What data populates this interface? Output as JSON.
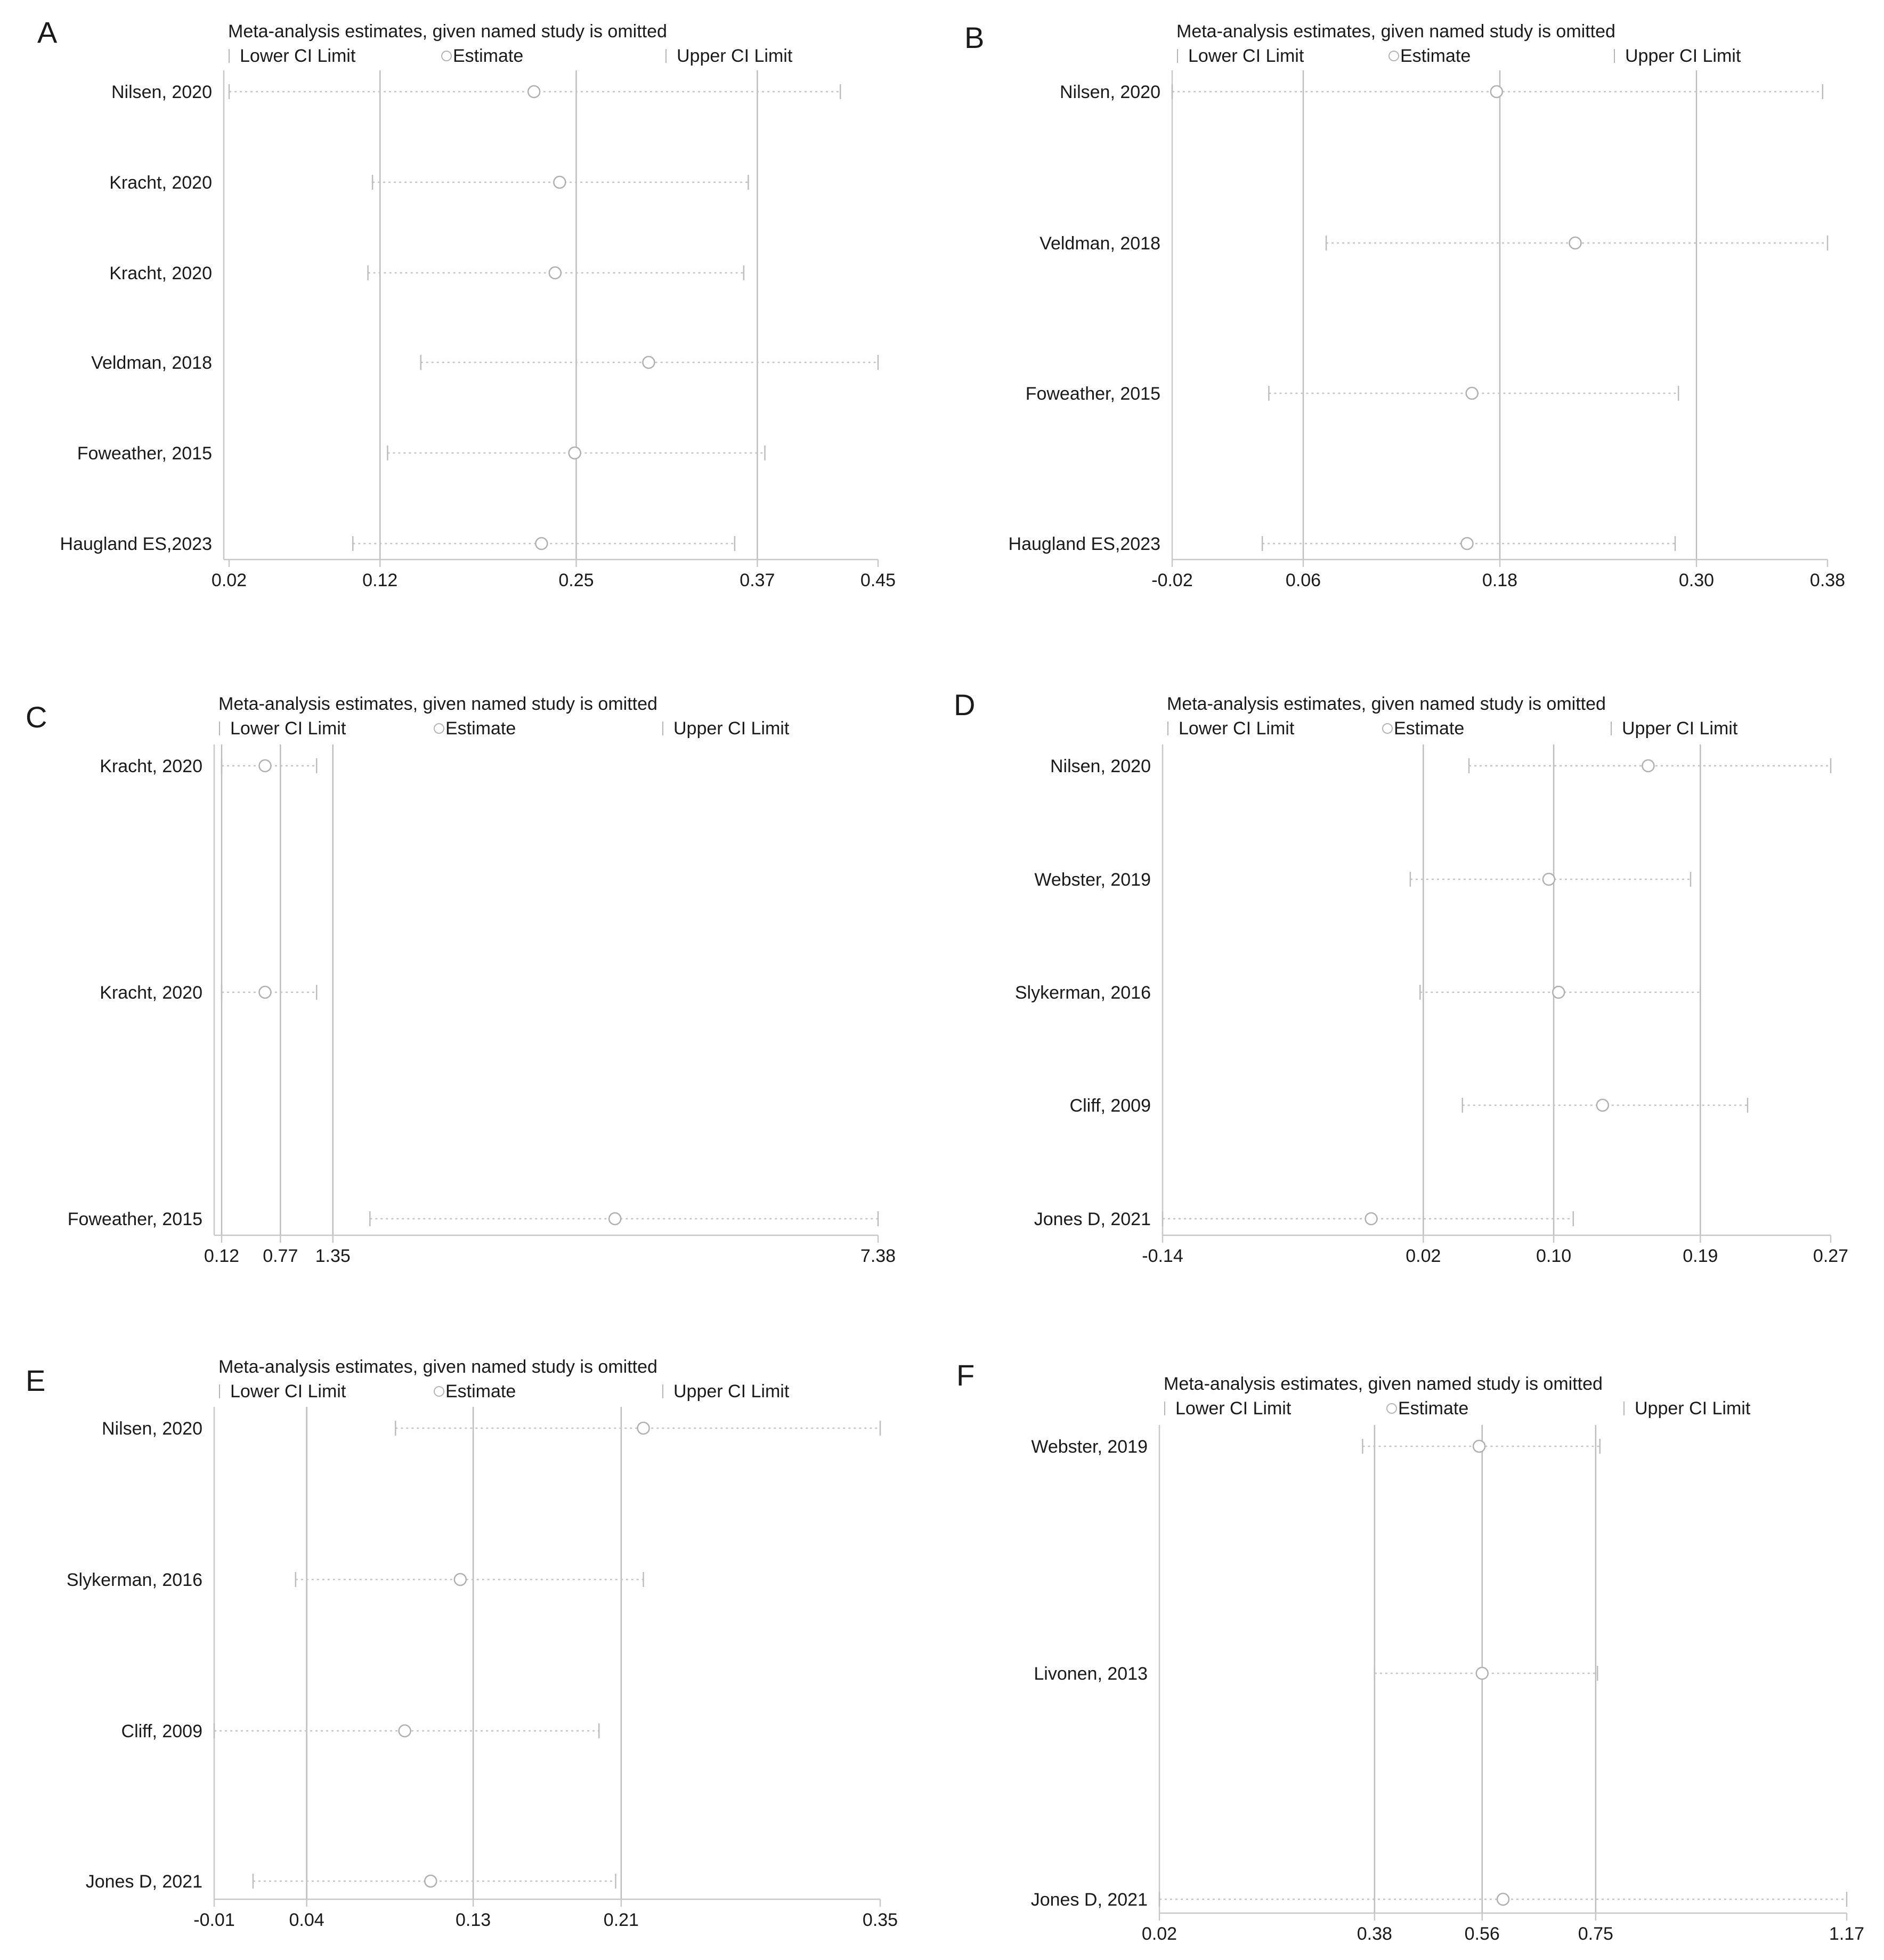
{
  "chart_data": [
    {
      "panel": "A",
      "type": "forest",
      "title": "Meta-analysis estimates, given named study is omitted",
      "legend": {
        "lower": "Lower CI Limit",
        "estimate": "Estimate",
        "upper": "Upper CI Limit"
      },
      "x_ticks": [
        0.02,
        0.12,
        0.25,
        0.37,
        0.45
      ],
      "x_tick_labels": [
        "0.02",
        "0.12",
        "0.25",
        "0.37",
        "0.45"
      ],
      "xlim": [
        0.02,
        0.45
      ],
      "ref_lines": [
        0.12,
        0.25,
        0.37
      ],
      "studies": [
        {
          "name": "Nilsen, 2020",
          "lower": 0.02,
          "estimate": 0.222,
          "upper": 0.425
        },
        {
          "name": "Kracht, 2020",
          "lower": 0.115,
          "estimate": 0.239,
          "upper": 0.364
        },
        {
          "name": "Kracht, 2020",
          "lower": 0.112,
          "estimate": 0.236,
          "upper": 0.361
        },
        {
          "name": "Veldman, 2018",
          "lower": 0.147,
          "estimate": 0.298,
          "upper": 0.45
        },
        {
          "name": "Foweather, 2015",
          "lower": 0.125,
          "estimate": 0.249,
          "upper": 0.375
        },
        {
          "name": "Haugland ES,2023",
          "lower": 0.102,
          "estimate": 0.227,
          "upper": 0.355
        }
      ]
    },
    {
      "panel": "B",
      "type": "forest",
      "title": "Meta-analysis estimates, given named study is omitted",
      "legend": {
        "lower": "Lower CI Limit",
        "estimate": "Estimate",
        "upper": "Upper CI Limit"
      },
      "x_ticks": [
        -0.02,
        0.06,
        0.18,
        0.3,
        0.38
      ],
      "x_tick_labels": [
        "-0.02",
        "0.06",
        "0.18",
        "0.30",
        "0.38"
      ],
      "xlim": [
        -0.02,
        0.38
      ],
      "ref_lines": [
        0.06,
        0.18,
        0.3
      ],
      "studies": [
        {
          "name": "Nilsen, 2020",
          "lower": -0.02,
          "estimate": 0.178,
          "upper": 0.377
        },
        {
          "name": "Veldman, 2018",
          "lower": 0.074,
          "estimate": 0.226,
          "upper": 0.38
        },
        {
          "name": "Foweather, 2015",
          "lower": 0.039,
          "estimate": 0.163,
          "upper": 0.289
        },
        {
          "name": "Haugland ES,2023",
          "lower": 0.035,
          "estimate": 0.16,
          "upper": 0.287
        }
      ]
    },
    {
      "panel": "C",
      "type": "forest",
      "title": "Meta-analysis estimates, given named study is omitted",
      "legend": {
        "lower": "Lower CI Limit",
        "estimate": "Estimate",
        "upper": "Upper CI Limit"
      },
      "x_ticks": [
        0.12,
        0.77,
        1.35,
        7.38
      ],
      "x_tick_labels": [
        "0.12",
        "0.77",
        "1.35",
        "7.38"
      ],
      "xlim": [
        0.12,
        7.38
      ],
      "ref_lines": [
        0.12,
        0.77,
        1.35
      ],
      "studies": [
        {
          "name": "Kracht, 2020",
          "lower": 0.12,
          "estimate": 0.6,
          "upper": 1.17
        },
        {
          "name": "Kracht, 2020",
          "lower": 0.12,
          "estimate": 0.6,
          "upper": 1.17
        },
        {
          "name": "Foweather, 2015",
          "lower": 1.76,
          "estimate": 4.47,
          "upper": 7.38
        }
      ]
    },
    {
      "panel": "D",
      "type": "forest",
      "title": "Meta-analysis estimates, given named study is omitted",
      "legend": {
        "lower": "Lower CI Limit",
        "estimate": "Estimate",
        "upper": "Upper CI Limit"
      },
      "x_ticks": [
        -0.14,
        0.02,
        0.1,
        0.19,
        0.27
      ],
      "x_tick_labels": [
        "-0.14",
        "0.02",
        "0.10",
        "0.19",
        "0.27"
      ],
      "xlim": [
        -0.14,
        0.27
      ],
      "ref_lines": [
        0.02,
        0.1,
        0.19
      ],
      "studies": [
        {
          "name": "Nilsen, 2020",
          "lower": 0.048,
          "estimate": 0.158,
          "upper": 0.27
        },
        {
          "name": "Webster, 2019",
          "lower": 0.012,
          "estimate": 0.097,
          "upper": 0.184
        },
        {
          "name": "Slykerman, 2016",
          "lower": 0.018,
          "estimate": 0.103,
          "upper": 0.19
        },
        {
          "name": "Cliff, 2009",
          "lower": 0.044,
          "estimate": 0.13,
          "upper": 0.219
        },
        {
          "name": "Jones D, 2021",
          "lower": -0.14,
          "estimate": -0.012,
          "upper": 0.112
        }
      ]
    },
    {
      "panel": "E",
      "type": "forest",
      "title": "Meta-analysis estimates, given named study is omitted",
      "legend": {
        "lower": "Lower CI Limit",
        "estimate": "Estimate",
        "upper": "Upper CI Limit"
      },
      "x_ticks": [
        -0.01,
        0.04,
        0.13,
        0.21,
        0.35
      ],
      "x_tick_labels": [
        "-0.01",
        "0.04",
        "0.13",
        "0.21",
        "0.35"
      ],
      "xlim": [
        -0.01,
        0.35
      ],
      "ref_lines": [
        0.04,
        0.13,
        0.21
      ],
      "studies": [
        {
          "name": "Nilsen, 2020",
          "lower": 0.088,
          "estimate": 0.222,
          "upper": 0.35
        },
        {
          "name": "Slykerman, 2016",
          "lower": 0.034,
          "estimate": 0.123,
          "upper": 0.222
        },
        {
          "name": "Cliff, 2009",
          "lower": -0.01,
          "estimate": 0.093,
          "upper": 0.198
        },
        {
          "name": "Jones D, 2021",
          "lower": 0.011,
          "estimate": 0.107,
          "upper": 0.207
        }
      ]
    },
    {
      "panel": "F",
      "type": "forest",
      "title": "Meta-analysis estimates, given named study is omitted",
      "legend": {
        "lower": "Lower CI Limit",
        "estimate": "Estimate",
        "upper": "Upper CI Limit"
      },
      "x_ticks": [
        0.02,
        0.38,
        0.56,
        0.75,
        1.17
      ],
      "x_tick_labels": [
        "0.02",
        "0.38",
        "0.56",
        "0.75",
        "1.17"
      ],
      "xlim": [
        0.02,
        1.17
      ],
      "ref_lines": [
        0.38,
        0.56,
        0.75
      ],
      "studies": [
        {
          "name": "Webster, 2019",
          "lower": 0.36,
          "estimate": 0.555,
          "upper": 0.757
        },
        {
          "name": "Livonen, 2013",
          "lower": 0.38,
          "estimate": 0.56,
          "upper": 0.753
        },
        {
          "name": "Jones D, 2021",
          "lower": 0.02,
          "estimate": 0.595,
          "upper": 1.17
        }
      ]
    }
  ]
}
